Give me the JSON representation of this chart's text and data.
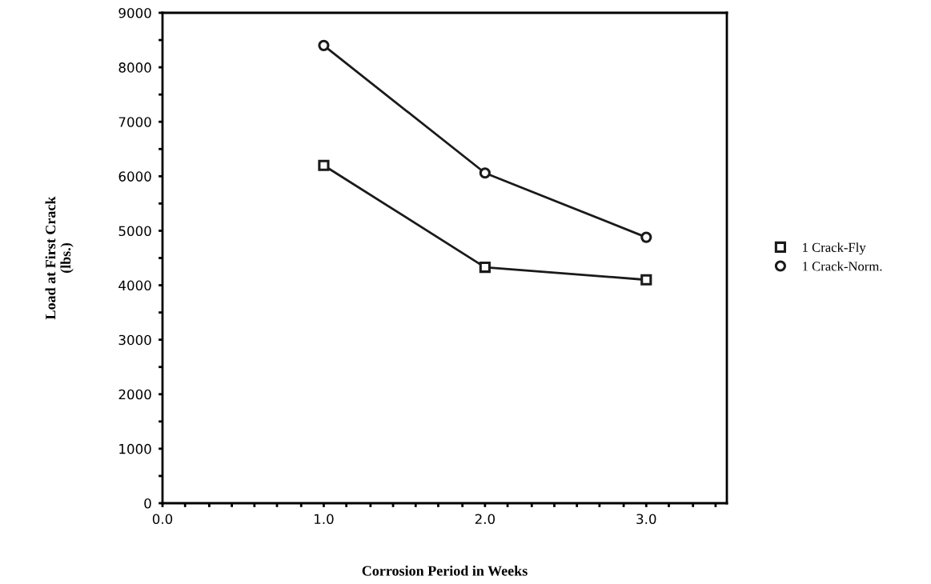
{
  "chart_data": {
    "type": "line",
    "xlabel": "Corrosion Period in Weeks",
    "ylabel": "Load at First Crack\n(lbs.)",
    "x": [
      1.0,
      2.0,
      3.0
    ],
    "series": [
      {
        "name": "1 Crack-Fly",
        "color": "#1a1a1a",
        "values": [
          6200,
          4330,
          4100
        ],
        "marker": "square"
      },
      {
        "name": "1 Crack-Norm.",
        "color": "#1a1a1a",
        "values": [
          8400,
          6060,
          4880
        ],
        "marker": "circle"
      }
    ],
    "xlim": [
      0,
      3.5
    ],
    "xticks": [
      {
        "value": 0,
        "label": "0.0"
      },
      {
        "value": 0.14,
        "label": null
      },
      {
        "value": 0.29,
        "label": null
      },
      {
        "value": 0.43,
        "label": null
      },
      {
        "value": 0.57,
        "label": null
      },
      {
        "value": 0.71,
        "label": null
      },
      {
        "value": 0.86,
        "label": null
      },
      {
        "value": 1,
        "label": "1.0"
      },
      {
        "value": 1.14,
        "label": null
      },
      {
        "value": 1.29,
        "label": null
      },
      {
        "value": 1.43,
        "label": null
      },
      {
        "value": 1.57,
        "label": null
      },
      {
        "value": 1.71,
        "label": null
      },
      {
        "value": 1.86,
        "label": null
      },
      {
        "value": 2,
        "label": "2.0"
      },
      {
        "value": 2.14,
        "label": null
      },
      {
        "value": 2.29,
        "label": null
      },
      {
        "value": 2.43,
        "label": null
      },
      {
        "value": 2.57,
        "label": null
      },
      {
        "value": 2.71,
        "label": null
      },
      {
        "value": 2.86,
        "label": null
      },
      {
        "value": 3,
        "label": "3.0"
      },
      {
        "value": 3.14,
        "label": null
      },
      {
        "value": 3.29,
        "label": null
      },
      {
        "value": 3.43,
        "label": null
      }
    ],
    "ylim": [
      0,
      9000
    ],
    "yticks": [
      0,
      {
        "value": 500,
        "label": null
      },
      1000,
      {
        "value": 1500,
        "label": null
      },
      2000,
      {
        "value": 2500,
        "label": null
      },
      3000,
      {
        "value": 3500,
        "label": null
      },
      4000,
      {
        "value": 4500,
        "label": null
      },
      5000,
      {
        "value": 5500,
        "label": null
      },
      6000,
      {
        "value": 6500,
        "label": null
      },
      7000,
      {
        "value": 7500,
        "label": null
      },
      8000,
      {
        "value": 8500,
        "label": null
      },
      9000
    ],
    "grid": false,
    "legend": "right",
    "line_style": "solid"
  }
}
